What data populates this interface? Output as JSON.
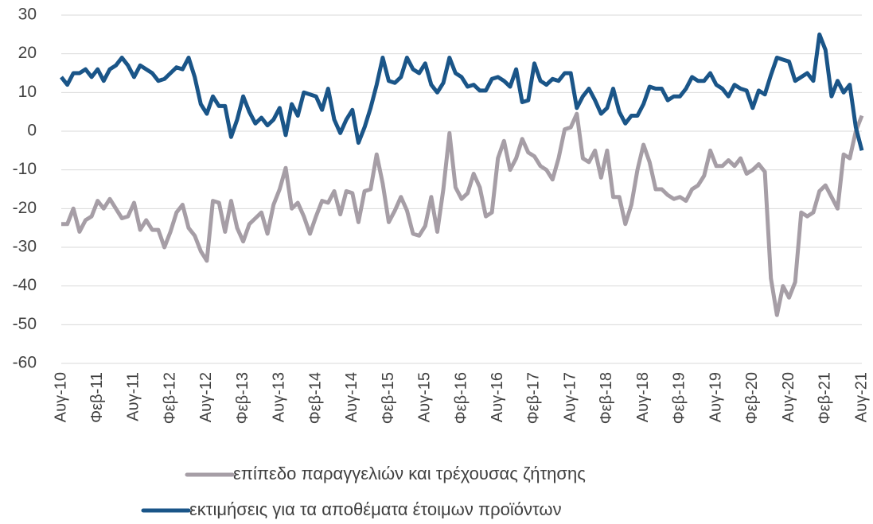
{
  "chart_data": {
    "type": "line",
    "categories": [
      "Αυγ-10",
      null,
      null,
      null,
      null,
      null,
      "Φεβ-11",
      null,
      null,
      null,
      null,
      null,
      "Αυγ-11",
      null,
      null,
      null,
      null,
      null,
      "Φεβ-12",
      null,
      null,
      null,
      null,
      null,
      "Αυγ-12",
      null,
      null,
      null,
      null,
      null,
      "Φεβ-13",
      null,
      null,
      null,
      null,
      null,
      "Αυγ-13",
      null,
      null,
      null,
      null,
      null,
      "Φεβ-14",
      null,
      null,
      null,
      null,
      null,
      "Αυγ-14",
      null,
      null,
      null,
      null,
      null,
      "Φεβ-15",
      null,
      null,
      null,
      null,
      null,
      "Αυγ-15",
      null,
      null,
      null,
      null,
      null,
      "Φεβ-16",
      null,
      null,
      null,
      null,
      null,
      "Αυγ-16",
      null,
      null,
      null,
      null,
      null,
      "Φεβ-17",
      null,
      null,
      null,
      null,
      null,
      "Αυγ-17",
      null,
      null,
      null,
      null,
      null,
      "Φεβ-18",
      null,
      null,
      null,
      null,
      null,
      "Αυγ-18",
      null,
      null,
      null,
      null,
      null,
      "Φεβ-19",
      null,
      null,
      null,
      null,
      null,
      "Αυγ-19",
      null,
      null,
      null,
      null,
      null,
      "Φεβ-20",
      null,
      null,
      null,
      null,
      null,
      "Αυγ-20",
      null,
      null,
      null,
      null,
      null,
      "Φεβ-21",
      null,
      null,
      null,
      null,
      null,
      "Αυγ-21"
    ],
    "series": [
      {
        "name": "επίπεδο παραγγελιών και τρέχουσας ζήτησης",
        "color": "#a69ea6",
        "values": [
          -24,
          -24,
          -20,
          -26,
          -23,
          -22,
          -18,
          -20,
          -17.5,
          -20,
          -22.5,
          -22,
          -18.5,
          -25.5,
          -23,
          -25.5,
          -25.5,
          -30,
          -26,
          -21,
          -19,
          -25,
          -27,
          -31,
          -33.5,
          -18,
          -18.5,
          -26,
          -18,
          -25,
          -28.5,
          -24,
          -22.5,
          -21,
          -26.5,
          -19,
          -15,
          -9.5,
          -20,
          -18.5,
          -22,
          -26.5,
          -22,
          -18,
          -18.5,
          -15.5,
          -21.5,
          -15.5,
          -16,
          -23.5,
          -15.5,
          -15,
          -6,
          -13.5,
          -23.5,
          -20.5,
          -17,
          -20.5,
          -26.5,
          -27,
          -24.5,
          -17,
          -26,
          -15,
          -0.5,
          -14.5,
          -17.5,
          -16,
          -11,
          -14.5,
          -22,
          -21,
          -7,
          -2.5,
          -10,
          -7,
          -2,
          -5.5,
          -6.5,
          -9,
          -10,
          -12.5,
          -7,
          0.5,
          1,
          4.5,
          -7,
          -8,
          -5,
          -12,
          -5,
          -17,
          -17,
          -24,
          -19,
          -10,
          -3.5,
          -8,
          -15,
          -15,
          -16.5,
          -17.5,
          -17,
          -18,
          -15,
          -14,
          -11.5,
          -5,
          -9,
          -9,
          -7.5,
          -9,
          -7,
          -11,
          -10,
          -8.5,
          -10.5,
          -38,
          -47.5,
          -40,
          -43,
          -39,
          -21,
          -22,
          -21,
          -15.5,
          -14,
          -17,
          -20,
          -6,
          -7,
          0,
          4
        ]
      },
      {
        "name": "εκτιμήσεις για τα αποθέματα έτοιμων προϊόντων",
        "color": "#1a5588",
        "values": [
          14,
          12,
          15,
          15,
          16,
          14,
          16,
          13,
          16,
          17,
          19,
          17,
          14,
          17,
          16,
          15,
          13,
          13.5,
          15,
          16.5,
          16,
          19,
          14,
          7,
          4.5,
          9,
          6.5,
          6.5,
          -1.5,
          3,
          9,
          5,
          2,
          3.5,
          1.5,
          3,
          6,
          -1,
          7,
          4,
          10,
          9.5,
          9,
          5.5,
          11,
          3,
          -0.5,
          3,
          5.5,
          -3,
          1,
          6,
          12,
          19,
          13,
          12.5,
          14,
          19,
          16,
          15,
          17.5,
          12,
          10,
          12.5,
          19,
          15,
          14,
          11.5,
          12,
          10.5,
          10.5,
          13.5,
          14,
          13,
          11.5,
          16,
          7.5,
          8,
          17.5,
          13,
          12,
          13.5,
          13,
          15,
          15,
          6,
          9,
          11,
          8,
          4.5,
          6,
          11,
          5,
          2,
          4,
          4,
          7,
          11.5,
          11,
          11,
          8,
          9,
          9,
          11,
          14,
          13,
          13,
          15,
          12,
          11,
          9,
          12,
          11,
          10.5,
          6,
          10.5,
          9.5,
          14.5,
          19,
          18.5,
          18,
          13,
          14,
          15,
          13,
          25,
          21,
          9,
          13,
          10,
          12,
          1,
          -5
        ]
      }
    ],
    "ylim": [
      -60,
      30
    ],
    "yticks": [
      -60,
      -50,
      -40,
      -30,
      -20,
      -10,
      0,
      10,
      20,
      30
    ],
    "grid": true
  }
}
